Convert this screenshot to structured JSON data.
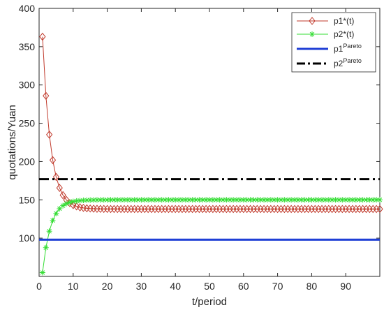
{
  "chart_data": {
    "type": "line",
    "title": "",
    "xlabel": "t/period",
    "ylabel": "quotations/Yuan",
    "xlim": [
      0,
      100
    ],
    "ylim": [
      50,
      400
    ],
    "x_ticks": [
      0,
      10,
      20,
      30,
      40,
      50,
      60,
      70,
      80,
      90
    ],
    "y_ticks": [
      100,
      150,
      200,
      250,
      300,
      350,
      400
    ],
    "grid": false,
    "legend_position": "top-right",
    "series": [
      {
        "name": "p1*(t)",
        "color": "#c0392b",
        "marker": "diamond",
        "line_style": "solid",
        "params": {
          "t_start": 1,
          "t_end": 100,
          "v_start": 363,
          "v_end": 138,
          "decay": 0.42
        }
      },
      {
        "name": "p2*(t)",
        "color": "#33dd33",
        "marker": "asterisk",
        "line_style": "solid",
        "params": {
          "t_start": 1,
          "t_end": 100,
          "v_start": 55,
          "v_end": 150,
          "decay": 0.42
        }
      },
      {
        "name": "p1Pareto",
        "label_base": "p1",
        "label_sup": "Pareto",
        "color": "#1f3fd6",
        "line_style": "solid",
        "constant": 98
      },
      {
        "name": "p2Pareto",
        "label_base": "p2",
        "label_sup": "Pareto",
        "color": "#000000",
        "line_style": "dashdot",
        "constant": 177
      }
    ]
  }
}
